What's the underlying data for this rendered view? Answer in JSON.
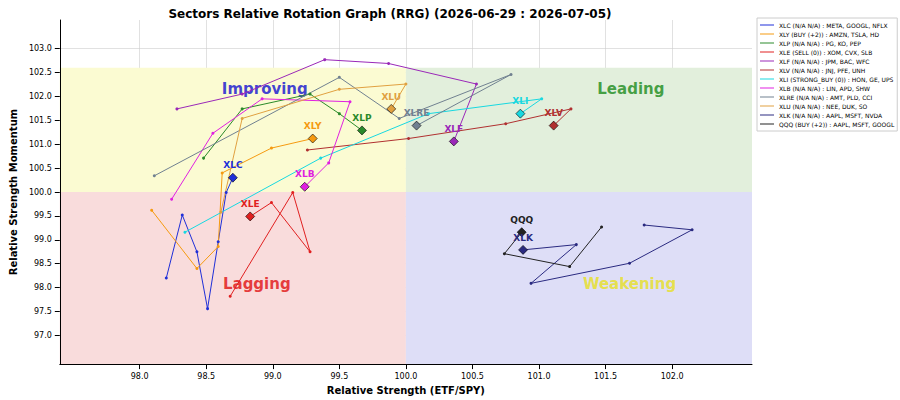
{
  "chart_data": {
    "type": "line",
    "title": "Sectors Relative Rotation Graph (RRG) (2026-06-29 : 2026-07-05)",
    "x_label": "Relative Strength (ETF/SPY)",
    "y_label": "Relative Strength Momentum",
    "xlim": [
      97.4,
      102.6
    ],
    "ylim": [
      96.4,
      103.6
    ],
    "xticks": [
      {
        "value": 98,
        "label": "98.0"
      },
      {
        "value": 98.5,
        "label": "98.5"
      },
      {
        "value": 99,
        "label": "99.0"
      },
      {
        "value": 99.5,
        "label": "99.5"
      },
      {
        "value": 100,
        "label": "100.0"
      },
      {
        "value": 100.5,
        "label": "100.5"
      },
      {
        "value": 101,
        "label": "101.0"
      },
      {
        "value": 101.5,
        "label": "101.5"
      },
      {
        "value": 102,
        "label": "102.0"
      }
    ],
    "yticks": [
      {
        "value": 97,
        "label": "97.0"
      },
      {
        "value": 97.5,
        "label": "97.5"
      },
      {
        "value": 98,
        "label": "98.0"
      },
      {
        "value": 98.5,
        "label": "98.5"
      },
      {
        "value": 99,
        "label": "99.0"
      },
      {
        "value": 99.5,
        "label": "99.5"
      },
      {
        "value": 100,
        "label": "100.0"
      },
      {
        "value": 100.5,
        "label": "100.5"
      },
      {
        "value": 101,
        "label": "101.0"
      },
      {
        "value": 101.5,
        "label": "101.5"
      },
      {
        "value": 102,
        "label": "102.0"
      },
      {
        "value": 102.5,
        "label": "102.5"
      },
      {
        "value": 103,
        "label": "103.0"
      }
    ],
    "grid": true,
    "legend": "outside right",
    "marker": "diamond",
    "quadrants": [
      {
        "label": "Improving",
        "label_color": "#1010d0",
        "fill": "#fbfbd2",
        "xrange": [
          97.4,
          100
        ],
        "yrange": [
          100,
          102.6
        ],
        "label_at": [
          98.94,
          102.15
        ]
      },
      {
        "label": "Leading",
        "label_color": "#1a8a1a",
        "fill": "#e2efdc",
        "xrange": [
          100,
          102.6
        ],
        "yrange": [
          100,
          102.6
        ],
        "label_at": [
          101.69,
          102.15
        ]
      },
      {
        "label": "Lagging",
        "label_color": "#e01010",
        "fill": "#f9dcdc",
        "xrange": [
          97.4,
          100
        ],
        "yrange": [
          96.4,
          100
        ],
        "label_at": [
          98.88,
          98.07
        ]
      },
      {
        "label": "Weakening",
        "label_color": "#e8e020",
        "fill": "#dedef7",
        "xrange": [
          100,
          102.6
        ],
        "yrange": [
          96.4,
          100
        ],
        "label_at": [
          101.68,
          98.07
        ]
      }
    ],
    "series": [
      {
        "name": "XLC (N/A N/A) : META, GOOGL, NFLX",
        "label": "XLC",
        "color": "#1f2fd8",
        "values": [
          [
            98.2,
            98.2
          ],
          [
            98.32,
            99.52
          ],
          [
            98.43,
            98.75
          ],
          [
            98.51,
            97.56
          ],
          [
            98.59,
            98.96
          ],
          [
            98.65,
            99.99
          ],
          [
            98.7,
            100.3
          ]
        ]
      },
      {
        "name": "XLY (BUY (+2)) : AMZN, TSLA, HD",
        "label": "XLY",
        "color": "#f59a10",
        "values": [
          [
            98.09,
            99.62
          ],
          [
            98.43,
            98.4
          ],
          [
            98.59,
            98.86
          ],
          [
            98.62,
            100.4
          ],
          [
            98.99,
            100.92
          ],
          [
            99.3,
            101.12
          ]
        ]
      },
      {
        "name": "XLP (N/A N/A) : PG, KO, PEP",
        "label": "XLP",
        "color": "#2a8a2a",
        "values": [
          [
            98.48,
            100.71
          ],
          [
            98.77,
            101.74
          ],
          [
            99.28,
            102.05
          ],
          [
            99.5,
            101.64
          ],
          [
            99.67,
            101.29
          ]
        ]
      },
      {
        "name": "XLE (SELL (0)) : XOM, CVX, SLB",
        "label": "XLE",
        "color": "#e02020",
        "values": [
          [
            98.68,
            97.82
          ],
          [
            99.15,
            99.99
          ],
          [
            99.28,
            98.75
          ],
          [
            98.99,
            99.78
          ],
          [
            98.83,
            99.49
          ]
        ]
      },
      {
        "name": "XLF (N/A N/A) : JPM, BAC, WFC",
        "label": "XLF",
        "color": "#9a28b8",
        "values": [
          [
            98.28,
            101.74
          ],
          [
            98.77,
            102.05
          ],
          [
            99.39,
            102.77
          ],
          [
            99.87,
            102.69
          ],
          [
            100.53,
            102.26
          ],
          [
            100.36,
            101.06
          ]
        ]
      },
      {
        "name": "XLV (N/A N/A) : JNJ, PFE, UNH",
        "label": "XLV",
        "color": "#b03030",
        "values": [
          [
            99.26,
            100.88
          ],
          [
            100.02,
            101.12
          ],
          [
            100.75,
            101.43
          ],
          [
            101.24,
            101.74
          ],
          [
            101.11,
            101.39
          ]
        ]
      },
      {
        "name": "XLI (STRONG_BUY (0)) : HON, GE, UPS",
        "label": "XLI",
        "color": "#18d8e0",
        "values": [
          [
            98.34,
            99.16
          ],
          [
            99.36,
            100.71
          ],
          [
            100.17,
            101.64
          ],
          [
            101.02,
            101.95
          ],
          [
            100.86,
            101.64
          ]
        ]
      },
      {
        "name": "XLB (N/A N/A) : LIN, APD, SHW",
        "label": "XLB",
        "color": "#e020e0",
        "values": [
          [
            98.24,
            99.85
          ],
          [
            98.55,
            101.23
          ],
          [
            98.92,
            101.95
          ],
          [
            99.58,
            101.89
          ],
          [
            99.42,
            100.61
          ],
          [
            99.24,
            100.11
          ]
        ]
      },
      {
        "name": "XLRE (N/A N/A) : AMT, PLD, CCI",
        "label": "XLRE",
        "color": "#708090",
        "values": [
          [
            98.11,
            100.34
          ],
          [
            99.5,
            102.4
          ],
          [
            99.95,
            101.54
          ],
          [
            100.79,
            102.46
          ],
          [
            100.08,
            101.39
          ]
        ]
      },
      {
        "name": "XLU (N/A N/A) : NEE, DUK, SO",
        "label": "XLU",
        "color": "#e0a040",
        "values": [
          [
            98.61,
            99.58
          ],
          [
            98.77,
            101.54
          ],
          [
            99.5,
            102.15
          ],
          [
            100.0,
            102.26
          ],
          [
            99.89,
            101.74
          ]
        ]
      },
      {
        "name": "XLK (N/A N/A) : AAPL, MSFT, NVDA",
        "label": "XLK",
        "color": "#2a2a80",
        "values": [
          [
            101.79,
            99.31
          ],
          [
            102.15,
            99.21
          ],
          [
            101.68,
            98.51
          ],
          [
            100.94,
            98.09
          ],
          [
            101.28,
            98.9
          ],
          [
            100.88,
            98.79
          ]
        ]
      },
      {
        "name": "QQQ (BUY (+2)) : AAPL, MSFT, GOOGL",
        "label": "QQQ",
        "color": "#222222",
        "values": [
          [
            101.47,
            99.27
          ],
          [
            101.23,
            98.44
          ],
          [
            100.74,
            98.71
          ],
          [
            100.87,
            99.16
          ]
        ]
      }
    ]
  }
}
